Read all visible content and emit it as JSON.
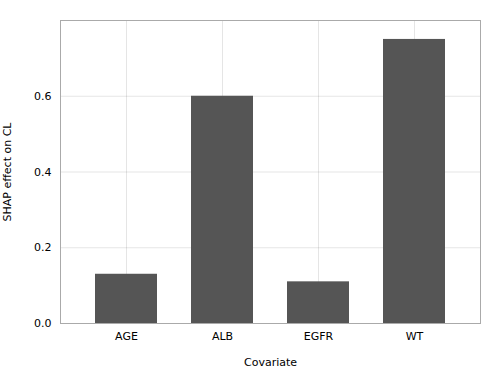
{
  "chart_data": {
    "type": "bar",
    "categories": [
      "AGE",
      "ALB",
      "EGFR",
      "WT"
    ],
    "values": [
      0.13,
      0.6,
      0.11,
      0.75
    ],
    "color": "#555555",
    "xlabel": "Covariate",
    "ylabel": "SHAP effect on CL",
    "ylim": [
      0,
      0.8
    ],
    "yticks": [
      {
        "value": 0,
        "label": "0.0"
      },
      0.2,
      0.4,
      0.6
    ],
    "grid": true
  }
}
